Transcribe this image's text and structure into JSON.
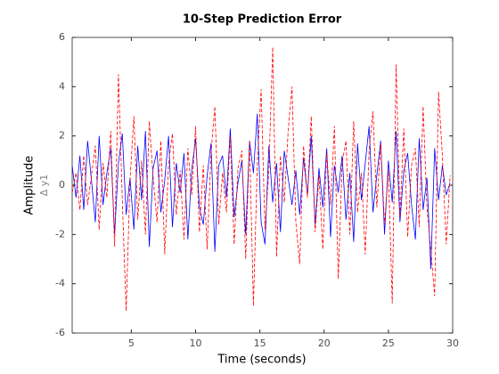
{
  "chart_data": {
    "type": "line",
    "title": "10-Step Prediction Error",
    "xlabel": "Time (seconds)",
    "ylabel": "Amplitude",
    "ylabel_sub": "Δ y1",
    "x": [
      0.4,
      0.7,
      1.0,
      1.3,
      1.6,
      1.9,
      2.2,
      2.5,
      2.8,
      3.1,
      3.4,
      3.7,
      4.0,
      4.3,
      4.6,
      4.9,
      5.2,
      5.5,
      5.8,
      6.1,
      6.4,
      6.7,
      7.0,
      7.3,
      7.6,
      7.9,
      8.2,
      8.5,
      8.8,
      9.1,
      9.4,
      9.7,
      10.0,
      10.3,
      10.6,
      10.9,
      11.2,
      11.5,
      11.8,
      12.1,
      12.4,
      12.7,
      13.0,
      13.3,
      13.6,
      13.9,
      14.2,
      14.5,
      14.8,
      15.1,
      15.4,
      15.7,
      16.0,
      16.3,
      16.6,
      16.9,
      17.2,
      17.5,
      17.8,
      18.1,
      18.4,
      18.7,
      19.0,
      19.3,
      19.6,
      19.9,
      20.2,
      20.5,
      20.8,
      21.1,
      21.4,
      21.7,
      22.0,
      22.3,
      22.6,
      22.9,
      23.2,
      23.5,
      23.8,
      24.1,
      24.4,
      24.7,
      25.0,
      25.3,
      25.6,
      25.9,
      26.2,
      26.5,
      26.8,
      27.1,
      27.4,
      27.7,
      28.0,
      28.3,
      28.6,
      28.9,
      29.2,
      29.5,
      29.8
    ],
    "series": [
      {
        "color": "#0000ff",
        "dash": false,
        "values": [
          0.8,
          -0.5,
          1.2,
          -1.0,
          1.8,
          0.2,
          -1.5,
          2.0,
          -0.8,
          0.5,
          1.5,
          -2.0,
          0.9,
          2.1,
          -1.2,
          0.3,
          -1.8,
          1.6,
          -0.6,
          2.2,
          -2.5,
          0.7,
          1.4,
          -1.1,
          0.2,
          2.0,
          -1.7,
          0.9,
          -0.3,
          1.3,
          -2.2,
          0.6,
          1.9,
          -0.9,
          -1.6,
          0.4,
          1.7,
          -2.7,
          0.8,
          1.2,
          -0.5,
          2.3,
          -1.3,
          0.1,
          1.0,
          -2.0,
          1.8,
          0.5,
          2.9,
          -1.5,
          -2.4,
          1.6,
          -0.7,
          0.9,
          -1.9,
          1.4,
          0.3,
          -0.8,
          0.6,
          -1.2,
          1.1,
          -0.4,
          2.0,
          -1.6,
          0.7,
          -0.9,
          1.5,
          -2.1,
          0.8,
          -0.3,
          1.2,
          -1.4,
          0.5,
          -2.3,
          1.7,
          -0.6,
          0.9,
          2.4,
          -1.1,
          0.4,
          1.8,
          -2.0,
          1.0,
          -0.7,
          2.2,
          -1.5,
          0.6,
          1.3,
          -0.8,
          -2.2,
          1.9,
          -1.0,
          0.3,
          -3.4,
          1.5,
          -0.6,
          0.8,
          -0.4,
          0.1
        ]
      },
      {
        "color": "#ff0000",
        "dash": true,
        "values": [
          -0.3,
          0.5,
          -1.0,
          1.2,
          -0.8,
          0.4,
          1.6,
          -1.8,
          0.9,
          -0.5,
          2.2,
          -2.5,
          4.5,
          -0.6,
          -5.1,
          0.2,
          2.8,
          -1.4,
          1.0,
          -2.0,
          2.6,
          0.3,
          -1.5,
          1.8,
          -2.8,
          0.9,
          2.1,
          -1.2,
          0.6,
          -2.2,
          1.5,
          -0.4,
          2.4,
          -1.9,
          0.8,
          -2.6,
          1.3,
          3.2,
          -1.6,
          0.5,
          -1.1,
          2.0,
          -2.4,
          0.7,
          1.4,
          -3.0,
          1.8,
          -4.9,
          0.8,
          3.9,
          -1.8,
          0.6,
          5.6,
          -2.9,
          1.2,
          -0.7,
          2.2,
          4.0,
          -1.5,
          -3.2,
          1.6,
          -0.5,
          2.8,
          -1.9,
          0.4,
          -2.6,
          1.3,
          -0.8,
          2.4,
          -3.8,
          0.9,
          1.8,
          -2.0,
          2.6,
          -1.1,
          0.5,
          -2.8,
          1.4,
          3.0,
          -0.9,
          1.7,
          -1.6,
          0.6,
          -4.8,
          4.9,
          -1.3,
          2.3,
          -2.1,
          0.8,
          1.5,
          -1.7,
          3.2,
          -0.9,
          -2.6,
          -4.5,
          3.8,
          1.2,
          -2.4,
          0.4
        ]
      }
    ],
    "xlim": [
      0.4,
      30
    ],
    "xticks": [
      5,
      10,
      15,
      20,
      25,
      30
    ],
    "ylim": [
      -6,
      6
    ],
    "yticks": [
      -6,
      -4,
      -2,
      0,
      2,
      4,
      6
    ],
    "grid": false
  }
}
